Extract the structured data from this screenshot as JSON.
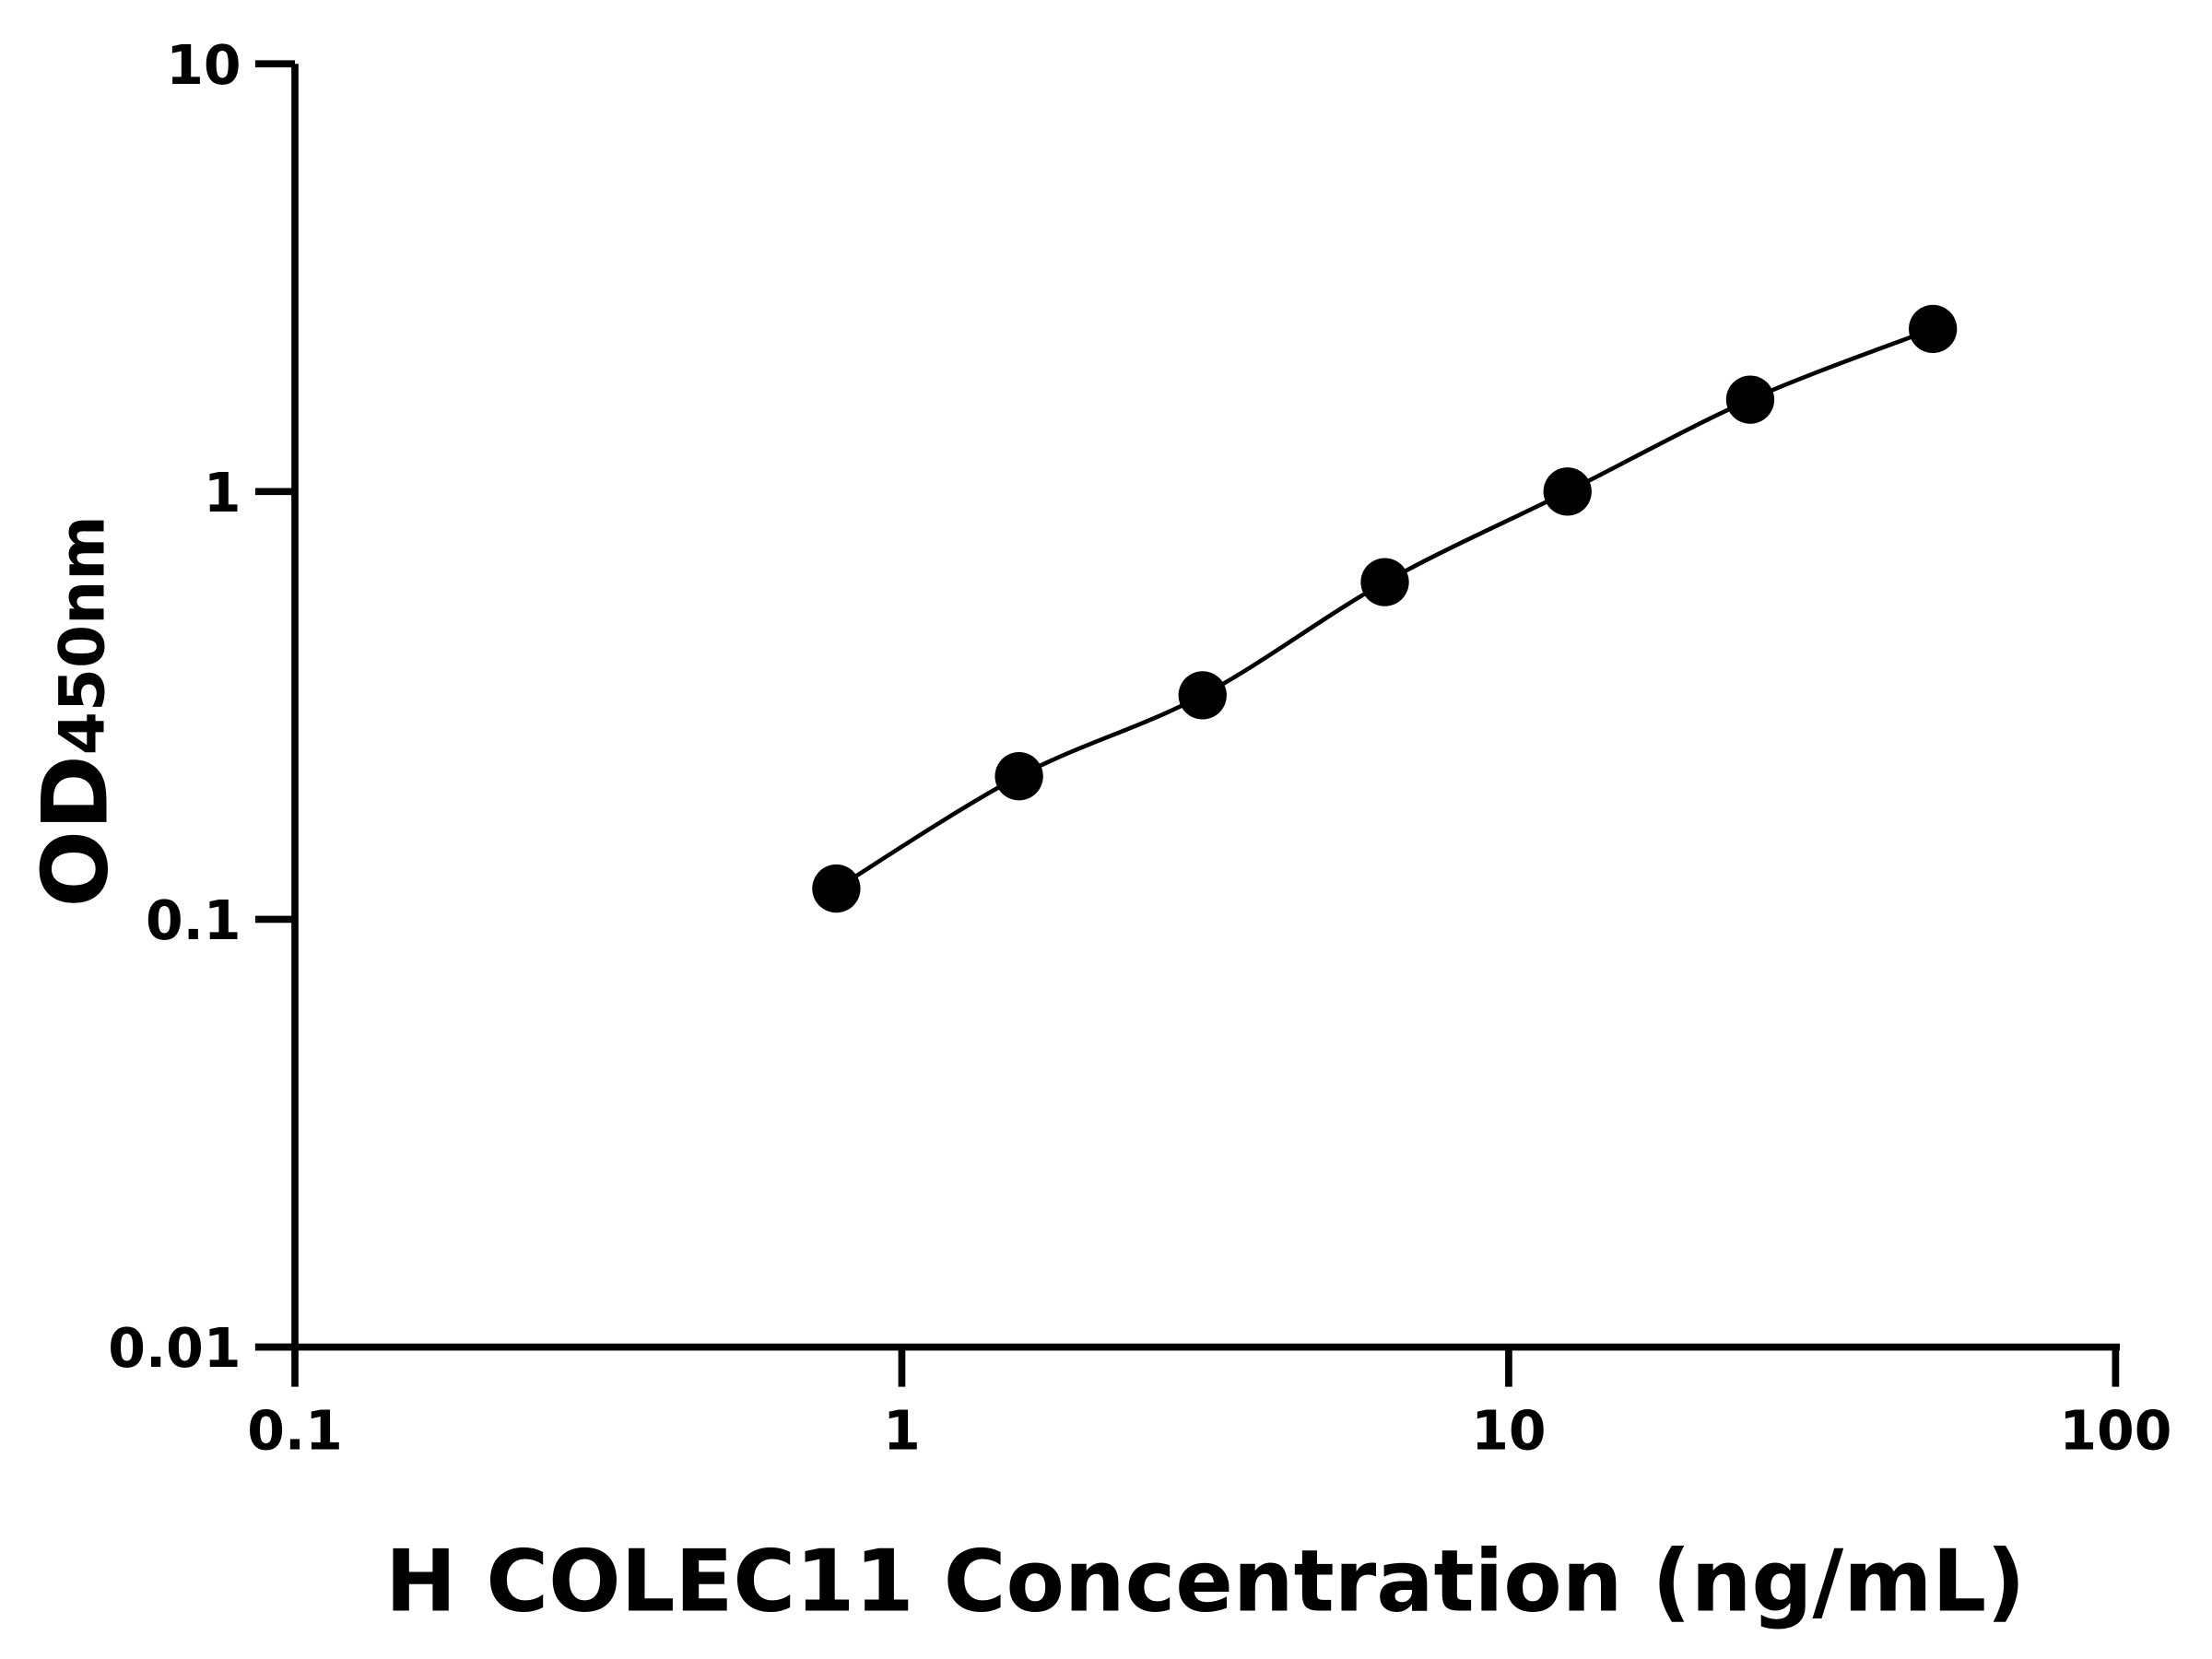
{
  "chart_data": {
    "type": "scatter",
    "xlabel": "H COLEC11 Concentration (ng/mL)",
    "ylabel_main": "OD",
    "ylabel_sub": "450nm",
    "x_scale": "log",
    "y_scale": "log",
    "xlim": [
      0.1,
      100
    ],
    "ylim": [
      0.01,
      10
    ],
    "x_ticks": [
      "0.1",
      "1",
      "10",
      "100"
    ],
    "y_ticks": [
      "0.01",
      "0.1",
      "1",
      "10"
    ],
    "grid": false,
    "fit_curve": true,
    "series": [
      {
        "x": [
          0.78,
          1.56,
          3.13,
          6.25,
          12.5,
          25,
          50
        ],
        "y": [
          0.118,
          0.216,
          0.334,
          0.614,
          1.0,
          1.64,
          2.4
        ]
      }
    ],
    "colors": {
      "marker": "#000000",
      "line": "#000000",
      "axis": "#000000"
    }
  }
}
